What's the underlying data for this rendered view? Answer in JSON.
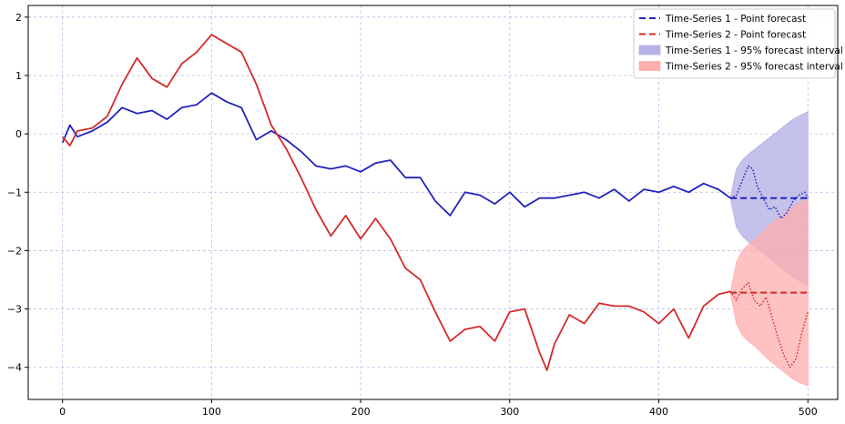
{
  "chart_data": {
    "type": "line",
    "title": "",
    "xlabel": "",
    "ylabel": "",
    "xlim": [
      -23,
      520
    ],
    "ylim": [
      -4.55,
      2.2
    ],
    "xticks": [
      0,
      100,
      200,
      300,
      400,
      500
    ],
    "yticks": [
      2,
      1,
      0,
      -1,
      -2,
      -3,
      -4
    ],
    "grid": true,
    "legend_position": "top-right",
    "colors": {
      "ts1": "#2222bb",
      "ts2": "#d42a2a",
      "ts1_band": "#b5b2e6",
      "ts2_band": "#ffadad",
      "grid": "#b9b9e6"
    },
    "legend": [
      {
        "label": "Time-Series 1 - Point forecast",
        "kind": "dashed",
        "color": "#2222bb"
      },
      {
        "label": "Time-Series 2 - Point forecast",
        "kind": "dashed",
        "color": "#d42a2a"
      },
      {
        "label": "Time-Series 1 - 95% forecast interval",
        "kind": "patch",
        "color": "#b5b2e6"
      },
      {
        "label": "Time-Series 2 - 95% forecast interval",
        "kind": "patch",
        "color": "#ffadad"
      }
    ],
    "series": [
      {
        "name": "Time-Series 1",
        "role": "observed",
        "color": "#2222bb",
        "x": [
          0,
          5,
          10,
          20,
          30,
          40,
          50,
          60,
          70,
          80,
          90,
          100,
          110,
          120,
          130,
          140,
          150,
          160,
          170,
          180,
          190,
          200,
          210,
          220,
          230,
          240,
          250,
          260,
          270,
          280,
          290,
          300,
          310,
          320,
          330,
          340,
          350,
          360,
          370,
          380,
          390,
          400,
          410,
          420,
          430,
          440,
          448
        ],
        "y": [
          -0.15,
          0.15,
          -0.05,
          0.05,
          0.2,
          0.45,
          0.35,
          0.4,
          0.25,
          0.45,
          0.5,
          0.7,
          0.55,
          0.45,
          -0.1,
          0.05,
          -0.1,
          -0.3,
          -0.55,
          -0.6,
          -0.55,
          -0.65,
          -0.5,
          -0.45,
          -0.75,
          -0.75,
          -1.15,
          -1.4,
          -1.0,
          -1.05,
          -1.2,
          -1.0,
          -1.25,
          -1.1,
          -1.1,
          -1.05,
          -1.0,
          -1.1,
          -0.95,
          -1.15,
          -0.95,
          -1.0,
          -0.9,
          -1.0,
          -0.85,
          -0.95,
          -1.1
        ]
      },
      {
        "name": "Time-Series 2",
        "role": "observed",
        "color": "#d42a2a",
        "x": [
          0,
          5,
          10,
          20,
          30,
          40,
          50,
          60,
          70,
          80,
          90,
          100,
          110,
          120,
          130,
          140,
          150,
          160,
          170,
          180,
          190,
          200,
          210,
          220,
          230,
          240,
          250,
          260,
          270,
          280,
          290,
          300,
          310,
          320,
          325,
          330,
          340,
          350,
          360,
          370,
          380,
          390,
          400,
          410,
          420,
          430,
          440,
          448
        ],
        "y": [
          -0.05,
          -0.2,
          0.05,
          0.1,
          0.3,
          0.85,
          1.3,
          0.95,
          0.8,
          1.2,
          1.4,
          1.7,
          1.55,
          1.4,
          0.85,
          0.15,
          -0.25,
          -0.75,
          -1.3,
          -1.75,
          -1.4,
          -1.8,
          -1.45,
          -1.8,
          -2.3,
          -2.5,
          -3.05,
          -3.55,
          -3.35,
          -3.3,
          -3.55,
          -3.05,
          -3.0,
          -3.75,
          -4.05,
          -3.6,
          -3.1,
          -3.25,
          -2.9,
          -2.95,
          -2.95,
          -3.05,
          -3.25,
          -3.0,
          -3.5,
          -2.95,
          -2.75,
          -2.7
        ]
      },
      {
        "name": "Time-Series 1",
        "role": "forecast",
        "style": "dashed",
        "color": "#2222bb",
        "x": [
          448,
          500
        ],
        "y": [
          -1.1,
          -1.1
        ]
      },
      {
        "name": "Time-Series 2",
        "role": "forecast",
        "style": "dashed",
        "color": "#d42a2a",
        "x": [
          448,
          500
        ],
        "y": [
          -2.72,
          -2.72
        ]
      },
      {
        "name": "Time-Series 1",
        "role": "actual",
        "style": "dotted",
        "color": "#2222bb",
        "x": [
          448,
          452,
          456,
          460,
          463,
          466,
          470,
          474,
          478,
          482,
          486,
          490,
          494,
          498,
          500
        ],
        "y": [
          -1.1,
          -1.05,
          -0.8,
          -0.55,
          -0.6,
          -0.9,
          -1.1,
          -1.3,
          -1.25,
          -1.45,
          -1.35,
          -1.15,
          -1.05,
          -1.0,
          -1.1
        ]
      },
      {
        "name": "Time-Series 2",
        "role": "actual",
        "style": "dotted",
        "color": "#d42a2a",
        "x": [
          448,
          452,
          456,
          460,
          464,
          468,
          472,
          476,
          480,
          484,
          488,
          492,
          496,
          500
        ],
        "y": [
          -2.7,
          -2.85,
          -2.65,
          -2.55,
          -2.85,
          -2.95,
          -2.8,
          -3.15,
          -3.5,
          -3.8,
          -4.0,
          -3.85,
          -3.4,
          -3.05
        ]
      }
    ],
    "intervals": [
      {
        "series": "Time-Series 1",
        "color": "#b5b2e6",
        "x": [
          448,
          452,
          456,
          460,
          465,
          470,
          475,
          480,
          485,
          490,
          495,
          500
        ],
        "lower": [
          -1.1,
          -1.6,
          -1.75,
          -1.85,
          -1.95,
          -2.05,
          -2.15,
          -2.25,
          -2.35,
          -2.45,
          -2.53,
          -2.6
        ],
        "upper": [
          -1.1,
          -0.6,
          -0.45,
          -0.35,
          -0.25,
          -0.15,
          -0.05,
          0.05,
          0.15,
          0.25,
          0.32,
          0.38
        ]
      },
      {
        "series": "Time-Series 2",
        "color": "#ffadad",
        "x": [
          448,
          452,
          456,
          460,
          465,
          470,
          475,
          480,
          485,
          490,
          495,
          500
        ],
        "lower": [
          -2.72,
          -3.25,
          -3.45,
          -3.55,
          -3.65,
          -3.78,
          -3.9,
          -4.0,
          -4.1,
          -4.2,
          -4.27,
          -4.32
        ],
        "upper": [
          -2.72,
          -2.2,
          -2.0,
          -1.9,
          -1.8,
          -1.68,
          -1.55,
          -1.45,
          -1.35,
          -1.25,
          -1.17,
          -1.12
        ]
      }
    ]
  }
}
